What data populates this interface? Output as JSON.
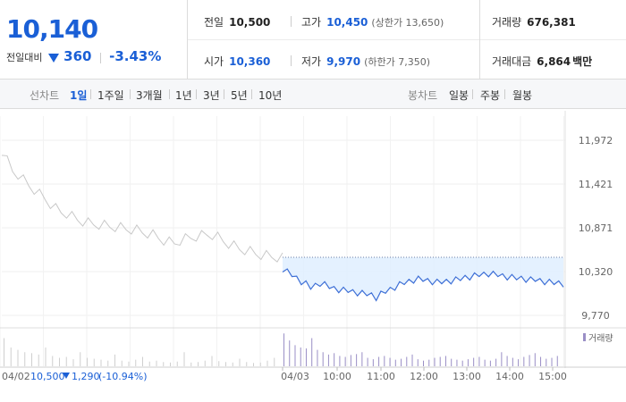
{
  "quote": {
    "price": "10,140",
    "change_label": "전일대비",
    "change": "360",
    "change_pct": "-3.43%",
    "direction": "down",
    "up_color": "#e53935",
    "down_color": "#1a5fd6"
  },
  "stats": {
    "prev_close": {
      "label": "전일",
      "value": "10,500"
    },
    "open": {
      "label": "시가",
      "value": "10,360"
    },
    "high": {
      "label": "고가",
      "value": "10,450",
      "extra": "(상한가 13,650)"
    },
    "low": {
      "label": "저가",
      "value": "9,970",
      "extra": "(하한가 7,350)"
    },
    "volume": {
      "label": "거래량",
      "value": "676,381"
    },
    "amount": {
      "label": "거래대금",
      "value": "6,864",
      "unit": "백만"
    }
  },
  "tabs": {
    "line_title": "선차트",
    "line_items": [
      "1일",
      "1주일",
      "3개월",
      "1년",
      "3년",
      "5년",
      "10년"
    ],
    "line_active": "1일",
    "candle_title": "봉차트",
    "candle_items": [
      "일봉",
      "주봉",
      "월봉"
    ]
  },
  "chart_data": {
    "type": "line",
    "y_ticks": [
      "11,972",
      "11,421",
      "10,871",
      "10,320",
      "9,770"
    ],
    "ylim": [
      9770,
      11972
    ],
    "x_tick_labels": [
      "04/03",
      "10:00",
      "11:00",
      "12:00",
      "13:00",
      "14:00",
      "15:00"
    ],
    "legend": "거래량",
    "prev_day": {
      "date": "04/02",
      "close": "10,500",
      "change": "1,290",
      "change_pct": "(-10.94%)",
      "line_color": "#c8c8c8",
      "values": [
        11850,
        11720,
        11600,
        11550,
        11480,
        11420,
        11360,
        11300,
        11250,
        11180,
        11120,
        11080,
        11060,
        11020,
        10990,
        10960,
        10940,
        10930,
        10920,
        10910,
        10900,
        10890,
        10880,
        10870,
        10860,
        10850,
        10830,
        10810,
        10790,
        10760,
        10720,
        10700,
        10690,
        10720,
        10740,
        10760,
        10770,
        10780,
        10800,
        10790,
        10760,
        10720,
        10680,
        10650,
        10620,
        10600,
        10580,
        10560,
        10540,
        10530,
        10520,
        10510,
        10500
      ]
    },
    "today": {
      "date": "04/03",
      "line_color": "#3d6fd6",
      "fill_color": "#dfefff",
      "ref_value": 10500,
      "values": [
        10360,
        10320,
        10280,
        10240,
        10200,
        10170,
        10120,
        10150,
        10180,
        10160,
        10130,
        10110,
        10100,
        10090,
        10080,
        10070,
        10060,
        10050,
        10040,
        10030,
        10000,
        10040,
        10070,
        10100,
        10130,
        10160,
        10180,
        10200,
        10220,
        10230,
        10220,
        10210,
        10200,
        10190,
        10190,
        10200,
        10210,
        10220,
        10230,
        10250,
        10260,
        10270,
        10280,
        10290,
        10300,
        10290,
        10280,
        10270,
        10260,
        10250,
        10240,
        10240,
        10230,
        10220,
        10220,
        10210,
        10200,
        10190,
        10180,
        10180,
        10170
      ]
    },
    "volume": {
      "bar_color_prev": "#cfcfcf",
      "bar_color_today": "#9a8fc6",
      "prev_values": [
        60,
        40,
        35,
        30,
        28,
        25,
        40,
        22,
        18,
        20,
        15,
        30,
        18,
        16,
        14,
        12,
        25,
        12,
        10,
        14,
        20,
        10,
        12,
        9,
        8,
        10,
        30,
        8,
        9,
        12,
        22,
        11,
        9,
        8,
        16,
        9,
        7,
        8,
        12,
        18
      ],
      "today_values": [
        70,
        55,
        45,
        40,
        38,
        60,
        35,
        30,
        25,
        28,
        22,
        20,
        24,
        26,
        30,
        18,
        15,
        20,
        22,
        18,
        14,
        16,
        20,
        25,
        15,
        12,
        14,
        18,
        20,
        22,
        16,
        14,
        12,
        15,
        18,
        20,
        14,
        12,
        16,
        30,
        22,
        18,
        15,
        20,
        24,
        28,
        20,
        16,
        18,
        22
      ]
    }
  }
}
